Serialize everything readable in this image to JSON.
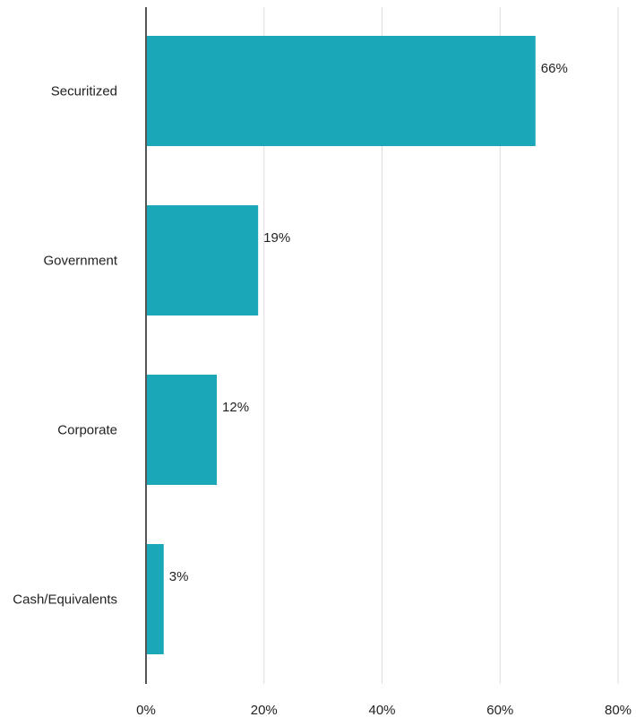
{
  "chart_data": {
    "type": "bar",
    "orientation": "horizontal",
    "title": "",
    "xlabel": "",
    "ylabel": "",
    "categories": [
      "Securitized",
      "Government",
      "Corporate",
      "Cash/Equivalents"
    ],
    "values": [
      66,
      19,
      12,
      3
    ],
    "data_labels": [
      "66%",
      "19%",
      "12%",
      "3%"
    ],
    "xlim": [
      0,
      80
    ],
    "x_ticks": [
      0,
      20,
      40,
      60,
      80
    ],
    "x_tick_labels": [
      "0%",
      "20%",
      "40%",
      "60%",
      "80%"
    ],
    "grid": true,
    "legend": "none",
    "bar_color": "#1aa7b8",
    "grid_color": "#dddddd",
    "axis_color": "#555555"
  }
}
